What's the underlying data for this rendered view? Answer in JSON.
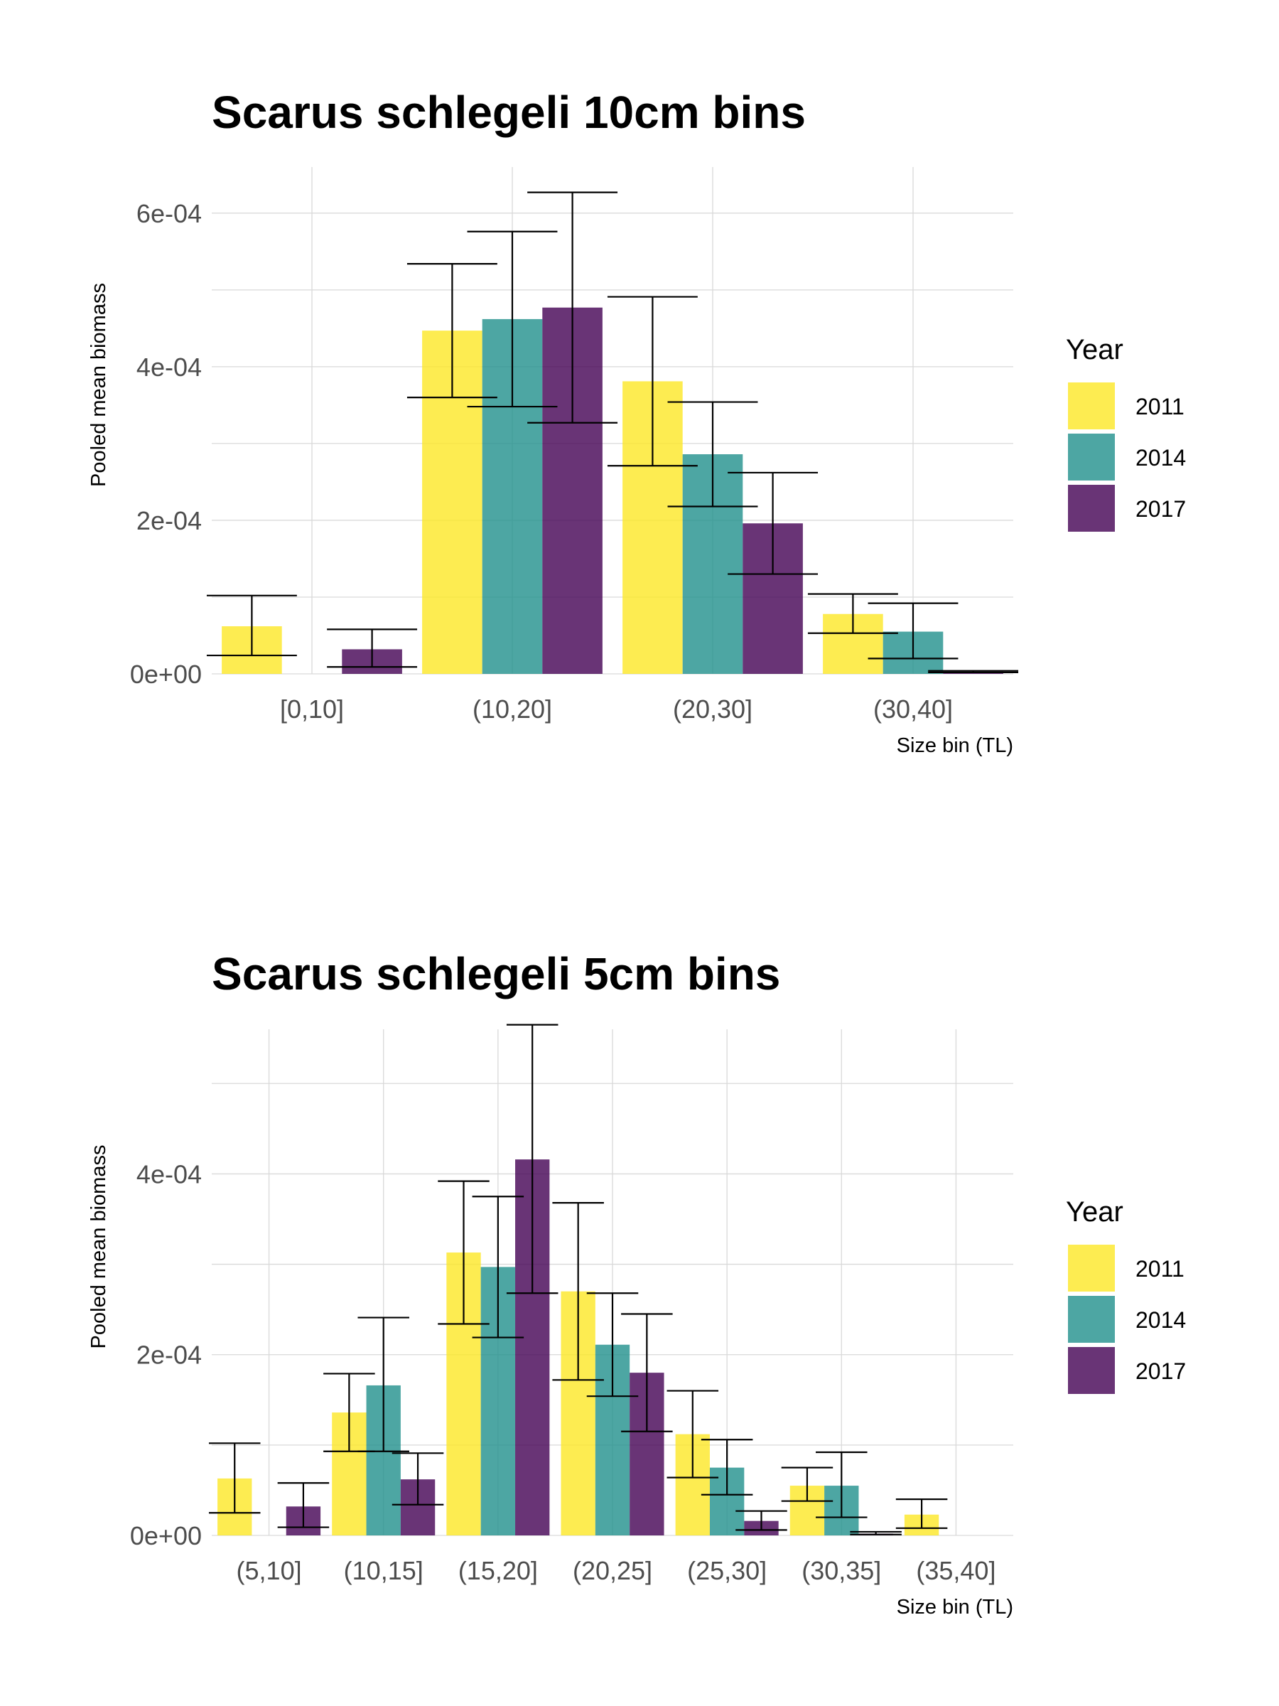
{
  "legend": {
    "title": "Year"
  },
  "chart_data": [
    {
      "type": "bar",
      "title": "Scarus schlegeli 10cm bins",
      "xlabel": "Size bin (TL)",
      "ylabel": "Pooled mean biomass",
      "categories": [
        "[0,10]",
        "(10,20]",
        "(20,30]",
        "(30,40]"
      ],
      "ylim": [
        0,
        0.00066
      ],
      "yticks": [
        0,
        0.0002,
        0.0004,
        0.0006
      ],
      "ytick_labels": [
        "0e+00",
        "2e-04",
        "4e-04",
        "6e-04"
      ],
      "grid": true,
      "legend_position": "right",
      "series": [
        {
          "name": "2011",
          "color": "#FDE725",
          "values": [
            6.2e-05,
            0.000447,
            0.000381,
            7.8e-05
          ],
          "error_low": [
            2.4e-05,
            0.00036,
            0.000271,
            5.3e-05
          ],
          "error_high": [
            0.000102,
            0.000534,
            0.000491,
            0.000104
          ]
        },
        {
          "name": "2014",
          "color": "#21908C",
          "values": [
            0,
            0.000462,
            0.000286,
            5.5e-05
          ],
          "error_low": [
            null,
            0.000348,
            0.000218,
            2e-05
          ],
          "error_high": [
            null,
            0.000576,
            0.000354,
            9.2e-05
          ]
        },
        {
          "name": "2017",
          "color": "#440154",
          "values": [
            3.2e-05,
            0.000477,
            0.000196,
            3e-06
          ],
          "error_low": [
            9e-06,
            0.000327,
            0.00013,
            2e-06
          ],
          "error_high": [
            5.8e-05,
            0.000627,
            0.000262,
            4e-06
          ]
        }
      ]
    },
    {
      "type": "bar",
      "title": "Scarus schlegeli 5cm bins",
      "xlabel": "Size bin (TL)",
      "ylabel": "Pooled mean biomass",
      "categories": [
        "(5,10]",
        "(10,15]",
        "(15,20]",
        "(20,25]",
        "(25,30]",
        "(30,35]",
        "(35,40]"
      ],
      "ylim": [
        0,
        0.00056
      ],
      "yticks": [
        0,
        0.0002,
        0.0004
      ],
      "ytick_labels": [
        "0e+00",
        "2e-04",
        "4e-04"
      ],
      "grid": true,
      "legend_position": "right",
      "series": [
        {
          "name": "2011",
          "color": "#FDE725",
          "values": [
            6.3e-05,
            0.000136,
            0.000313,
            0.00027,
            0.000112,
            5.5e-05,
            2.3e-05
          ],
          "error_low": [
            2.5e-05,
            9.3e-05,
            0.000234,
            0.000172,
            6.4e-05,
            3.8e-05,
            8e-06
          ],
          "error_high": [
            0.000102,
            0.000179,
            0.000392,
            0.000368,
            0.00016,
            7.5e-05,
            4e-05
          ]
        },
        {
          "name": "2014",
          "color": "#21908C",
          "values": [
            0,
            0.000166,
            0.000297,
            0.000211,
            7.5e-05,
            5.5e-05,
            0
          ],
          "error_low": [
            null,
            9.3e-05,
            0.000219,
            0.000154,
            4.5e-05,
            2e-05,
            null
          ],
          "error_high": [
            null,
            0.000241,
            0.000375,
            0.000268,
            0.000106,
            9.2e-05,
            null
          ]
        },
        {
          "name": "2017",
          "color": "#440154",
          "values": [
            3.2e-05,
            6.2e-05,
            0.000416,
            0.00018,
            1.6e-05,
            2e-06,
            0
          ],
          "error_low": [
            9e-06,
            3.4e-05,
            0.000268,
            0.000115,
            6e-06,
            1e-06,
            null
          ],
          "error_high": [
            5.8e-05,
            9.1e-05,
            0.000565,
            0.000245,
            2.7e-05,
            4e-06,
            null
          ]
        }
      ]
    }
  ]
}
